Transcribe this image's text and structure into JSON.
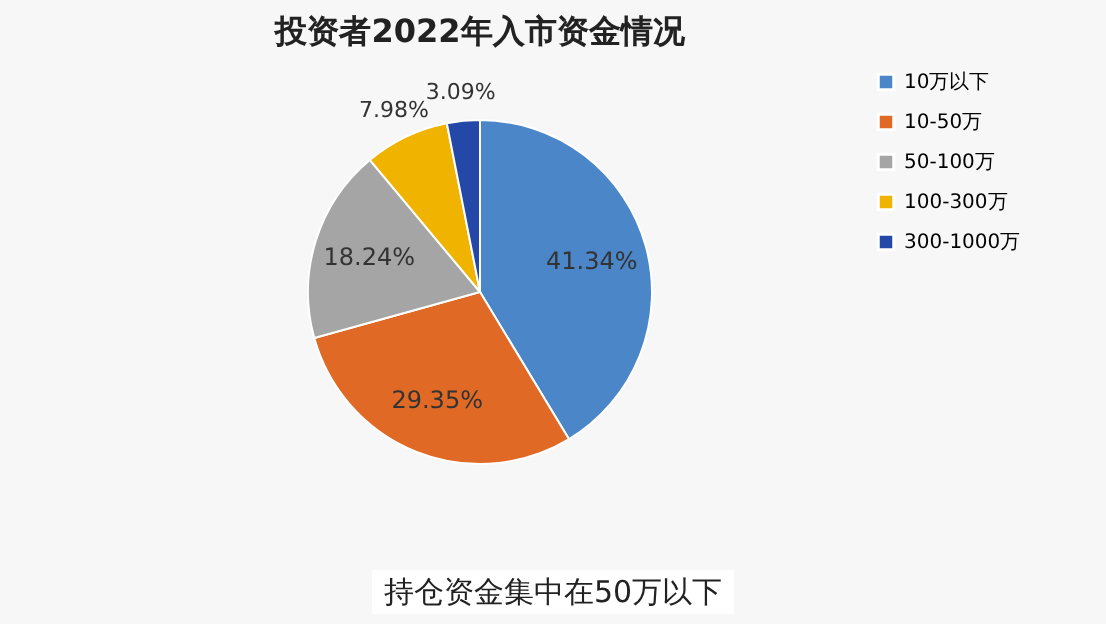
{
  "chart_data": {
    "type": "pie",
    "title": "投资者2022年入市资金情况",
    "categories": [
      "10万以下",
      "10-50万",
      "50-100万",
      "100-300万",
      "300-1000万"
    ],
    "values": [
      41.34,
      29.35,
      18.24,
      7.98,
      3.09
    ],
    "colors": [
      "#4a86c8",
      "#e06a25",
      "#a5a5a5",
      "#f0b400",
      "#2348a8"
    ],
    "value_labels": [
      "41.34%",
      "29.35%",
      "18.24%",
      "7.98%",
      "3.09%"
    ],
    "legend": "right",
    "annotations": [
      "持仓资金集中在50万以下"
    ]
  }
}
